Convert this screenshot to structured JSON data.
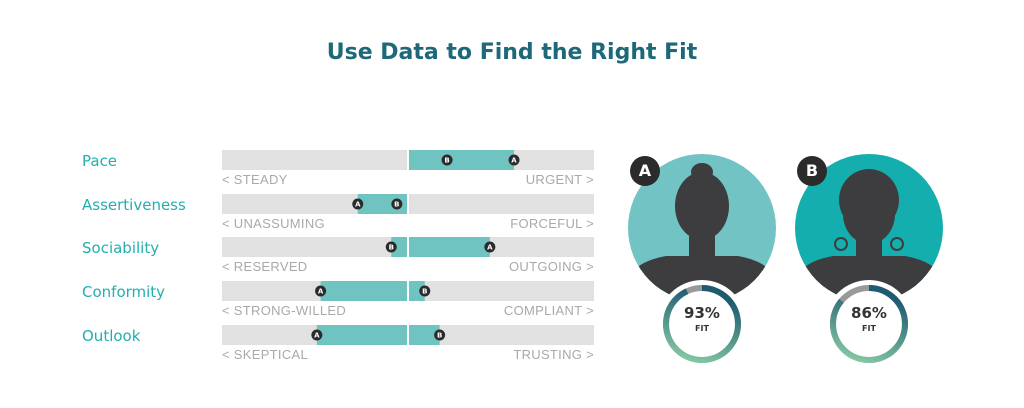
{
  "title": "Use Data to Find the Right Fit",
  "chart_data": {
    "type": "bar",
    "scale": [
      -1,
      1
    ],
    "traits": [
      {
        "name": "Pace",
        "left_label": "< STEADY",
        "right_label": "URGENT >",
        "A": 0.57,
        "B": 0.21
      },
      {
        "name": "Assertiveness",
        "left_label": "< UNASSUMING",
        "right_label": "FORCEFUL >",
        "A": -0.27,
        "B": -0.06
      },
      {
        "name": "Sociability",
        "left_label": "< RESERVED",
        "right_label": "OUTGOING >",
        "A": 0.44,
        "B": -0.09
      },
      {
        "name": "Conformity",
        "left_label": "< STRONG-WILLED",
        "right_label": "COMPLIANT >",
        "A": -0.47,
        "B": 0.09
      },
      {
        "name": "Outlook",
        "left_label": "< SKEPTICAL",
        "right_label": "TRUSTING >",
        "A": -0.49,
        "B": 0.17
      }
    ]
  },
  "candidates": [
    {
      "letter": "A",
      "fit_value": 0.93,
      "fit_text": "93%",
      "fit_label": "FIT",
      "bg_color": "#72c3c3"
    },
    {
      "letter": "B",
      "fit_value": 0.86,
      "fit_text": "86%",
      "fit_label": "FIT",
      "bg_color": "#14aeae"
    }
  ],
  "colors": {
    "track": "#e1e1e1",
    "bar": "#6fc4c1",
    "trait_name": "#23aeb0",
    "title": "#1d6879",
    "marker": "#2b2b2b",
    "silhouette": "#3d3d3f",
    "ring_start": "#8cd1a8",
    "ring_end": "#1f5b70",
    "ring_rest": "#999999"
  }
}
